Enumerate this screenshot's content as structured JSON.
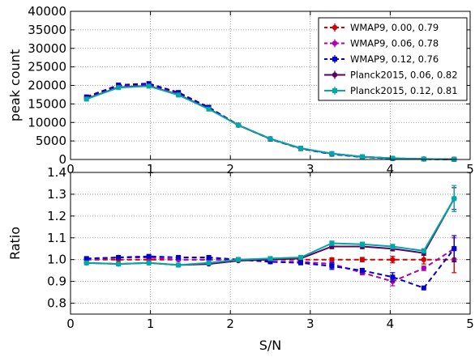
{
  "chart_data": [
    {
      "type": "line",
      "ylabel": "peak count",
      "xlim": [
        0,
        5
      ],
      "ylim": [
        0,
        40000
      ],
      "xticks": [
        "0",
        "1",
        "2",
        "3",
        "4",
        "5"
      ],
      "yticks": [
        "0",
        "5000",
        "10000",
        "15000",
        "20000",
        "25000",
        "30000",
        "35000",
        "40000"
      ],
      "grid": true,
      "legend_position": "top-right",
      "x": [
        0.2,
        0.6,
        0.98,
        1.35,
        1.73,
        2.1,
        2.5,
        2.88,
        3.27,
        3.65,
        4.03,
        4.42,
        4.8
      ],
      "series": [
        {
          "name": "WMAP9, 0.00, 0.79",
          "color": "#d40000",
          "style": "dashed",
          "marker": "circle",
          "values": [
            16700,
            19900,
            20200,
            18000,
            14000,
            9300,
            5600,
            3000,
            1500,
            700,
            300,
            120,
            40
          ]
        },
        {
          "name": "WMAP9, 0.06, 0.78",
          "color": "#b000b0",
          "style": "dashed",
          "marker": "circle",
          "values": [
            16800,
            20000,
            20300,
            18000,
            14000,
            9300,
            5500,
            2950,
            1450,
            660,
            270,
            115,
            42
          ]
        },
        {
          "name": "WMAP9, 0.12, 0.76",
          "color": "#0000cc",
          "style": "dashed",
          "marker": "square",
          "values": [
            16900,
            20100,
            20500,
            18100,
            14100,
            9300,
            5500,
            2950,
            1450,
            650,
            270,
            105,
            42
          ]
        },
        {
          "name": "Planck2015, 0.06, 0.82",
          "color": "#5c0060",
          "style": "solid",
          "marker": "circle",
          "values": [
            16400,
            19500,
            19900,
            17500,
            13700,
            9250,
            5600,
            3000,
            1580,
            740,
            310,
            124,
            51
          ]
        },
        {
          "name": "Planck2015, 0.12, 0.81",
          "color": "#00a8a8",
          "style": "solid",
          "marker": "square",
          "values": [
            16300,
            19400,
            19800,
            17400,
            13600,
            9300,
            5600,
            3050,
            1600,
            750,
            320,
            125,
            52
          ]
        }
      ]
    },
    {
      "type": "line",
      "xlabel": "S/N",
      "ylabel": "Ratio",
      "xlim": [
        0,
        5
      ],
      "ylim": [
        0.75,
        1.4
      ],
      "xticks": [
        "0",
        "1",
        "2",
        "3",
        "4",
        "5"
      ],
      "yticks": [
        "0.8",
        "0.9",
        "1.0",
        "1.1",
        "1.2",
        "1.3",
        "1.4"
      ],
      "grid": true,
      "x": [
        0.2,
        0.6,
        0.98,
        1.35,
        1.73,
        2.1,
        2.5,
        2.88,
        3.27,
        3.65,
        4.03,
        4.42,
        4.8
      ],
      "series": [
        {
          "name": "WMAP9, 0.00, 0.79",
          "color": "#d40000",
          "style": "dashed",
          "marker": "circle",
          "values": [
            1.0,
            1.0,
            1.0,
            1.0,
            1.0,
            1.0,
            1.0,
            1.0,
            1.0,
            1.0,
            1.0,
            1.0,
            1.0
          ],
          "errors": [
            0.003,
            0.003,
            0.003,
            0.003,
            0.003,
            0.003,
            0.004,
            0.005,
            0.008,
            0.01,
            0.015,
            0.02,
            0.06
          ]
        },
        {
          "name": "WMAP9, 0.06, 0.78",
          "color": "#b000b0",
          "style": "dashed",
          "marker": "circle",
          "values": [
            1.0,
            1.01,
            1.01,
            1.0,
            1.0,
            1.0,
            0.99,
            0.99,
            0.98,
            0.94,
            0.9,
            0.96,
            1.05
          ],
          "errors": [
            0.003,
            0.003,
            0.003,
            0.003,
            0.003,
            0.003,
            0.004,
            0.005,
            0.01,
            0.01,
            0.02,
            0.01,
            0.05
          ]
        },
        {
          "name": "WMAP9, 0.12, 0.76",
          "color": "#0000cc",
          "style": "dashed",
          "marker": "square",
          "values": [
            1.005,
            1.01,
            1.015,
            1.01,
            1.01,
            1.0,
            0.99,
            0.985,
            0.97,
            0.95,
            0.92,
            0.87,
            1.05
          ],
          "errors": [
            0.003,
            0.003,
            0.003,
            0.003,
            0.003,
            0.003,
            0.004,
            0.005,
            0.015,
            0.01,
            0.02,
            0.005,
            0.06
          ]
        },
        {
          "name": "Planck2015, 0.06, 0.82",
          "color": "#5c0060",
          "style": "solid",
          "marker": "circle",
          "values": [
            0.985,
            0.98,
            0.985,
            0.975,
            0.98,
            0.995,
            1.0,
            1.005,
            1.06,
            1.06,
            1.05,
            1.03,
            1.28
          ],
          "errors": [
            0.003,
            0.003,
            0.003,
            0.003,
            0.003,
            0.003,
            0.004,
            0.005,
            0.01,
            0.01,
            0.01,
            0.01,
            0.05
          ]
        },
        {
          "name": "Planck2015, 0.12, 0.81",
          "color": "#00a8a8",
          "style": "solid",
          "marker": "square",
          "values": [
            0.985,
            0.98,
            0.985,
            0.975,
            0.985,
            1.0,
            1.005,
            1.01,
            1.075,
            1.07,
            1.06,
            1.04,
            1.28
          ],
          "errors": [
            0.003,
            0.003,
            0.003,
            0.003,
            0.003,
            0.003,
            0.004,
            0.005,
            0.01,
            0.01,
            0.01,
            0.01,
            0.06
          ]
        }
      ]
    }
  ]
}
